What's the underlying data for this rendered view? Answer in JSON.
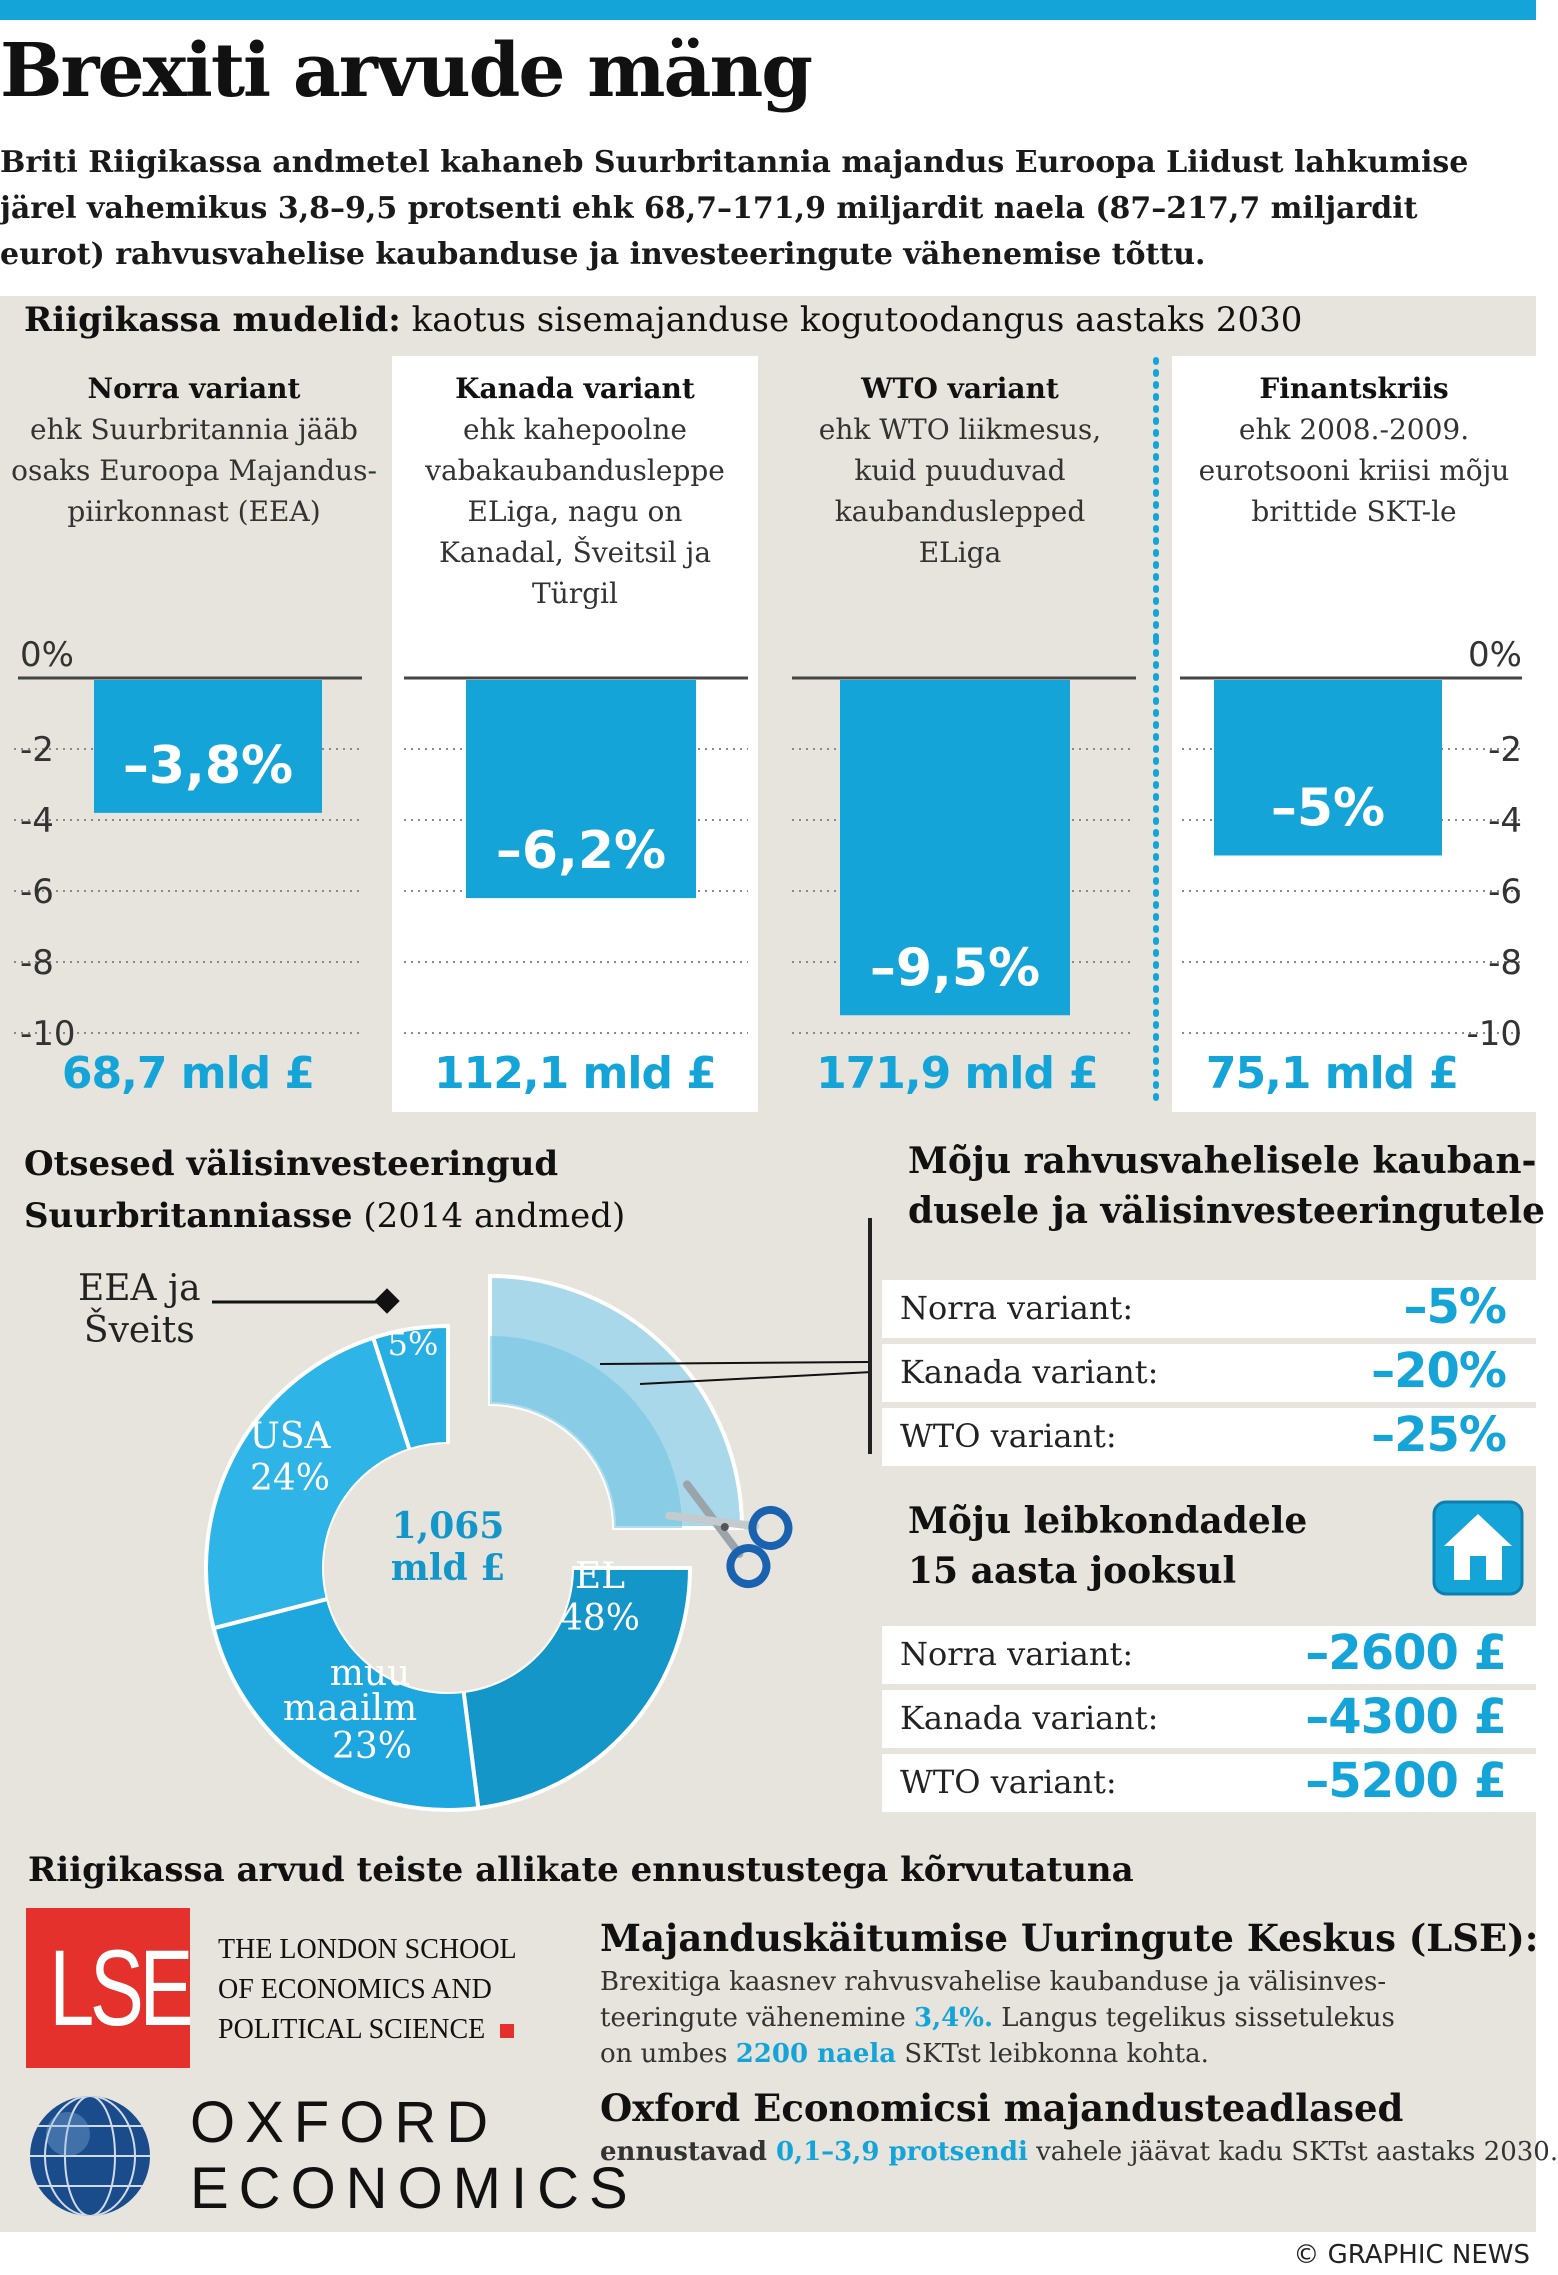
{
  "title": "Brexiti arvude mäng",
  "intro": "Briti Riigikassa andmetel kahaneb Suurbritannia majandus Euroopa Liidust lahkumise järel vahemikus 3,8–9,5 protsenti ehk 68,7–171,9 miljardit naela (87–217,7 miljardit eurot) rahvusvahelise kaubanduse ja investeeringute vähenemise tõttu.",
  "gdp_section": {
    "title_bold": "Riigikassa mudelid:",
    "title_rest": " kaotus sisemajanduse kogutoodangus aastaks 2030",
    "columns": [
      {
        "head": "Norra variant",
        "sub": "ehk Suurbritannia jääb osaks Euroopa Majandus-piirkonnast (EEA)",
        "bar_label": "–3,8%",
        "amount": "68,7 mld £"
      },
      {
        "head": "Kanada variant",
        "sub": "ehk kahepoolne vabakaubandusleppe ELiga, nagu on Kanadal, Šveitsil ja Türgil",
        "bar_label": "–6,2%",
        "amount": "112,1 mld £"
      },
      {
        "head": "WTO variant",
        "sub": "ehk WTO liikmesus, kuid puuduvad kaubanduslepped ELiga",
        "bar_label": "–9,5%",
        "amount": "171,9 mld £"
      },
      {
        "head": "Finantskriis",
        "sub": "ehk 2008.-2009. eurotsooni kriisi mõju brittide SKT-le",
        "bar_label": "–5%",
        "amount": "75,1 mld £"
      }
    ],
    "ticks": [
      "0%",
      "-2",
      "-4",
      "-6",
      "-8",
      "-10"
    ],
    "ticks_right": [
      "0%",
      "-2",
      "-4",
      "-6",
      "-8",
      "-10"
    ]
  },
  "fdi_section": {
    "title_bold_1": "Otsesed välisinvesteeringud",
    "title_bold_2": "Suurbritanniasse",
    "title_rest": " (2014 andmed)",
    "center_1": "1,065",
    "center_2": "mld £",
    "eea_label_1": "EEA ja",
    "eea_label_2": "Šveits",
    "seg_labels": {
      "eea": "5%",
      "usa_1": "USA",
      "usa_2": "24%",
      "el_1": "EL",
      "el_2": "48%",
      "muu_1": "muu",
      "muu_2": "maailm",
      "muu_3": "23%"
    }
  },
  "trade_section": {
    "title": "Mõju rahvusvahelisele kaubandusele ja välisinvesteeringutele",
    "title_1": "Mõju rahvusvahelisele kauban-",
    "title_2": "dusele ja välisinvesteeringutele",
    "rows": [
      {
        "label": "Norra variant:",
        "value": "–5%"
      },
      {
        "label": "Kanada variant:",
        "value": "–20%"
      },
      {
        "label": "WTO variant:",
        "value": "–25%"
      }
    ]
  },
  "household_section": {
    "title_1": "Mõju leibkondadele",
    "title_2": "15 aasta jooksul",
    "rows": [
      {
        "label": "Norra variant:",
        "value": "–2600 £"
      },
      {
        "label": "Kanada variant:",
        "value": "–4300 £"
      },
      {
        "label": "WTO variant:",
        "value": "–5200 £"
      }
    ]
  },
  "compare_section": {
    "title": "Riigikassa arvud teiste allikate ennustustega kõrvutatuna",
    "lse_logo": "LSE",
    "lse_name_1": "THE LONDON SCHOOL",
    "lse_name_2": "OF ECONOMICS AND",
    "lse_name_3": "POLITICAL SCIENCE",
    "oxford_1": "OXFORD",
    "oxford_2": "ECONOMICS",
    "lse_title": "Majanduskäitumise Uuringute Keskus (LSE):",
    "lse_text_1": "Brexitiga kaasnev rahvusvahelise kaubanduse ja välisinves-",
    "lse_text_2a": "teeringute vähenemine ",
    "lse_text_2b": "3,4%.",
    "lse_text_2c": " Langus tegelikus sissetulekus",
    "lse_text_3a": "on umbes ",
    "lse_text_3b": "2200 naela",
    "lse_text_3c": " SKTst leibkonna kohta.",
    "oxf_title": "Oxford Economicsi majandusteadlased",
    "oxf_text_a": "ennustavad ",
    "oxf_text_b": "0,1–3,9 protsendi",
    "oxf_text_c": " vahele jäävat kadu SKTst aastaks 2030."
  },
  "credit": "© GRAPHIC NEWS",
  "colors": {
    "accent": "#15a4d8",
    "dark_blue": "#1496c8",
    "mid_blue": "#2eb4e6",
    "light_blue": "#a9d8ea",
    "background": "#e6e4dc",
    "lse_red": "#e4312b"
  },
  "chart_data": [
    {
      "type": "bar",
      "title": "Riigikassa mudelid: kaotus sisemajanduse kogutoodangus aastaks 2030",
      "categories": [
        "Norra variant",
        "Kanada variant",
        "WTO variant",
        "Finantskriis"
      ],
      "values": [
        -3.8,
        -6.2,
        -9.5,
        -5.0
      ],
      "amounts_bn_gbp": [
        68.7,
        112.1,
        171.9,
        75.1
      ],
      "ylim": [
        -10,
        0
      ],
      "grid": true
    },
    {
      "type": "pie",
      "title": "Otsesed välisinvesteeringud Suurbritanniasse (2014 andmed)",
      "total": "1,065 mld £",
      "categories": [
        "EL",
        "muu maailm",
        "USA",
        "EEA ja Šveits"
      ],
      "values": [
        48,
        23,
        24,
        5
      ]
    }
  ]
}
